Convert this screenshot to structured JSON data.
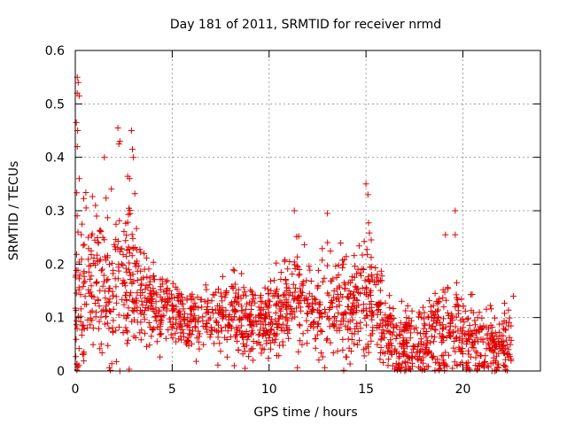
{
  "chart_data": {
    "type": "scatter",
    "title": "Day 181 of 2011, SRMTID for receiver nrmd",
    "xlabel": "GPS time / hours",
    "ylabel": "SRMTID / TECUs",
    "xlim": [
      0,
      24
    ],
    "ylim": [
      0,
      0.6
    ],
    "xticks": [
      0,
      5,
      10,
      15,
      20
    ],
    "xtick_labels": [
      "0",
      "5",
      "10",
      "15",
      "20"
    ],
    "yticks": [
      0,
      0.1,
      0.2,
      0.3,
      0.4,
      0.5,
      0.6
    ],
    "ytick_labels": [
      "0",
      "0.1",
      "0.2",
      "0.3",
      "0.4",
      "0.5",
      "0.6"
    ],
    "grid": true,
    "marker": "+",
    "marker_color": "#e00000",
    "envelope": {
      "x": [
        0,
        0.3,
        1,
        2,
        2.5,
        3,
        3.5,
        4,
        5,
        6,
        7,
        8,
        9,
        10,
        11,
        11.5,
        12,
        13,
        14,
        15,
        15.5,
        16,
        17,
        18,
        19,
        20,
        21,
        22,
        22.5
      ],
      "mean": [
        0.13,
        0.16,
        0.15,
        0.16,
        0.18,
        0.18,
        0.15,
        0.12,
        0.11,
        0.09,
        0.09,
        0.1,
        0.09,
        0.1,
        0.12,
        0.15,
        0.12,
        0.12,
        0.12,
        0.14,
        0.13,
        0.08,
        0.05,
        0.05,
        0.07,
        0.07,
        0.05,
        0.05,
        0.05
      ],
      "spread": [
        0.09,
        0.11,
        0.09,
        0.1,
        0.1,
        0.1,
        0.07,
        0.04,
        0.04,
        0.04,
        0.04,
        0.05,
        0.04,
        0.04,
        0.05,
        0.07,
        0.05,
        0.06,
        0.06,
        0.07,
        0.06,
        0.05,
        0.04,
        0.04,
        0.06,
        0.05,
        0.04,
        0.04,
        0.04
      ]
    },
    "point_count": 1800,
    "highlights": [
      {
        "x": 0.1,
        "y": 0.55
      },
      {
        "x": 0.15,
        "y": 0.54
      },
      {
        "x": 0.1,
        "y": 0.52
      },
      {
        "x": 0.2,
        "y": 0.515
      },
      {
        "x": 0.05,
        "y": 0.465
      },
      {
        "x": 0.12,
        "y": 0.45
      },
      {
        "x": 0.1,
        "y": 0.42
      },
      {
        "x": 2.2,
        "y": 0.455
      },
      {
        "x": 2.3,
        "y": 0.43
      },
      {
        "x": 2.25,
        "y": 0.425
      },
      {
        "x": 2.9,
        "y": 0.45
      },
      {
        "x": 2.95,
        "y": 0.415
      },
      {
        "x": 3.0,
        "y": 0.4
      },
      {
        "x": 1.5,
        "y": 0.4
      },
      {
        "x": 2.8,
        "y": 0.36
      },
      {
        "x": 0.2,
        "y": 0.36
      },
      {
        "x": 15.0,
        "y": 0.35
      },
      {
        "x": 15.1,
        "y": 0.33
      },
      {
        "x": 11.3,
        "y": 0.3
      },
      {
        "x": 13.0,
        "y": 0.295
      },
      {
        "x": 19.6,
        "y": 0.3
      },
      {
        "x": 19.1,
        "y": 0.255
      },
      {
        "x": 19.6,
        "y": 0.255
      },
      {
        "x": 22.6,
        "y": 0.14
      },
      {
        "x": 8.2,
        "y": 0.01
      },
      {
        "x": 2.3,
        "y": 0.0
      },
      {
        "x": 17.0,
        "y": 0.0
      },
      {
        "x": 21.5,
        "y": 0.0
      }
    ]
  }
}
